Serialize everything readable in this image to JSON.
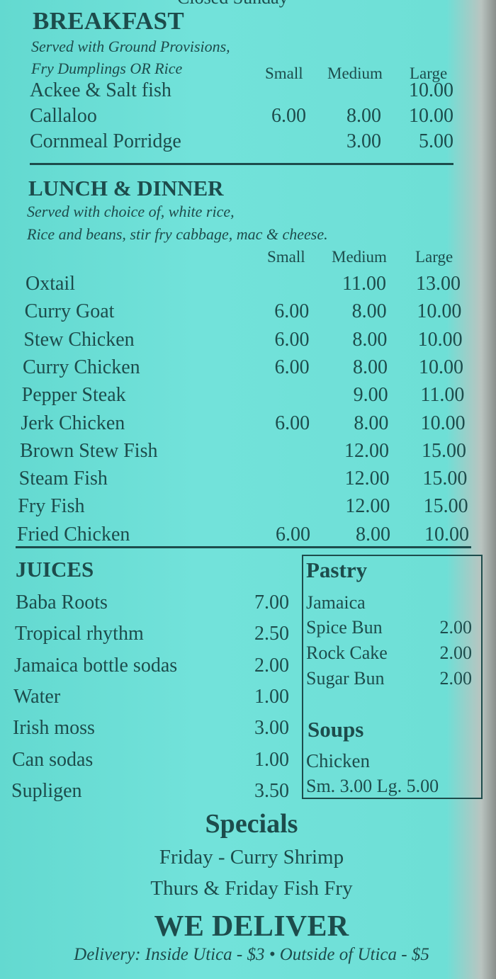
{
  "top_partial": "Closed Sunday",
  "breakfast": {
    "title": "BREAKFAST",
    "subtitle_1": "Served with Ground Provisions,",
    "subtitle_2": "Fry Dumplings OR Rice",
    "headers": [
      "Small",
      "Medium",
      "Large"
    ],
    "items": [
      {
        "name": "Ackee & Salt fish",
        "small": "",
        "medium": "",
        "large": "10.00"
      },
      {
        "name": "Callaloo",
        "small": "6.00",
        "medium": "8.00",
        "large": "10.00"
      },
      {
        "name": "Cornmeal Porridge",
        "small": "",
        "medium": "3.00",
        "large": "5.00"
      }
    ]
  },
  "lunch": {
    "title": "LUNCH & DINNER",
    "subtitle_1": "Served with choice of, white rice,",
    "subtitle_2": "Rice and beans, stir fry cabbage, mac & cheese.",
    "headers": [
      "Small",
      "Medium",
      "Large"
    ],
    "items": [
      {
        "name": "Oxtail",
        "small": "",
        "medium": "11.00",
        "large": "13.00"
      },
      {
        "name": "Curry Goat",
        "small": "6.00",
        "medium": "8.00",
        "large": "10.00"
      },
      {
        "name": "Stew Chicken",
        "small": "6.00",
        "medium": "8.00",
        "large": "10.00"
      },
      {
        "name": "Curry Chicken",
        "small": "6.00",
        "medium": "8.00",
        "large": "10.00"
      },
      {
        "name": "Pepper Steak",
        "small": "",
        "medium": "9.00",
        "large": "11.00"
      },
      {
        "name": "Jerk Chicken",
        "small": "6.00",
        "medium": "8.00",
        "large": "10.00"
      },
      {
        "name": "Brown Stew Fish",
        "small": "",
        "medium": "12.00",
        "large": "15.00"
      },
      {
        "name": "Steam Fish",
        "small": "",
        "medium": "12.00",
        "large": "15.00"
      },
      {
        "name": "Fry Fish",
        "small": "",
        "medium": "12.00",
        "large": "15.00"
      },
      {
        "name": "Fried Chicken",
        "small": "6.00",
        "medium": "8.00",
        "large": "10.00"
      }
    ]
  },
  "juices": {
    "title": "JUICES",
    "items": [
      {
        "name": "Baba Roots",
        "price": "7.00"
      },
      {
        "name": "Tropical rhythm",
        "price": "2.50"
      },
      {
        "name": "Jamaica bottle sodas",
        "price": "2.00"
      },
      {
        "name": "Water",
        "price": "1.00"
      },
      {
        "name": "Irish moss",
        "price": "3.00"
      },
      {
        "name": "Can sodas",
        "price": "1.00"
      },
      {
        "name": "Supligen",
        "price": "3.50"
      }
    ]
  },
  "pastry": {
    "title": "Pastry",
    "line": "Jamaica",
    "items": [
      {
        "name": "Spice Bun",
        "price": "2.00"
      },
      {
        "name": "Rock Cake",
        "price": "2.00"
      },
      {
        "name": "Sugar Bun",
        "price": "2.00"
      }
    ]
  },
  "soups": {
    "title": "Soups",
    "item": "Chicken",
    "prices": "Sm. 3.00 Lg. 5.00"
  },
  "specials": {
    "title": "Specials",
    "lines": [
      "Friday - Curry Shrimp",
      "Thurs & Friday Fish Fry"
    ]
  },
  "delivery": {
    "title": "WE DELIVER",
    "note": "Delivery: Inside Utica - $3 • Outside of Utica - $5"
  },
  "colors": {
    "paper": "#6fe0d8",
    "ink": "#1d4c4c"
  }
}
